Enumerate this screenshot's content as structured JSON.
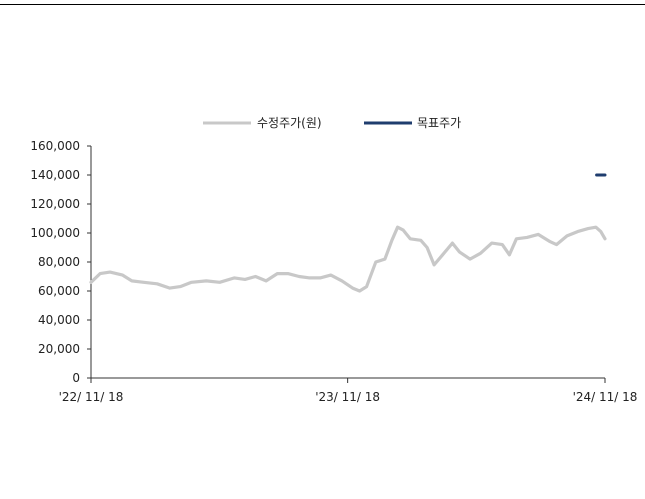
{
  "chart_data": {
    "type": "line",
    "series": [
      {
        "name": "수정주가(원)",
        "color": "#c8c8c8",
        "points": [
          [
            "2022-11-18",
            66000
          ],
          [
            "2022-12-01",
            72000
          ],
          [
            "2022-12-15",
            73000
          ],
          [
            "2023-01-02",
            71000
          ],
          [
            "2023-01-15",
            67000
          ],
          [
            "2023-02-01",
            66000
          ],
          [
            "2023-02-20",
            65000
          ],
          [
            "2023-03-10",
            62000
          ],
          [
            "2023-03-25",
            63000
          ],
          [
            "2023-04-10",
            66000
          ],
          [
            "2023-05-01",
            67000
          ],
          [
            "2023-05-20",
            66000
          ],
          [
            "2023-06-10",
            69000
          ],
          [
            "2023-06-25",
            68000
          ],
          [
            "2023-07-10",
            70000
          ],
          [
            "2023-07-25",
            67000
          ],
          [
            "2023-08-10",
            72000
          ],
          [
            "2023-08-25",
            72000
          ],
          [
            "2023-09-10",
            70000
          ],
          [
            "2023-09-25",
            69000
          ],
          [
            "2023-10-10",
            69000
          ],
          [
            "2023-10-25",
            71000
          ],
          [
            "2023-11-10",
            67000
          ],
          [
            "2023-11-25",
            62000
          ],
          [
            "2023-12-05",
            60000
          ],
          [
            "2023-12-15",
            63000
          ],
          [
            "2023-12-28",
            80000
          ],
          [
            "2024-01-10",
            82000
          ],
          [
            "2024-01-20",
            95000
          ],
          [
            "2024-01-28",
            104000
          ],
          [
            "2024-02-05",
            102000
          ],
          [
            "2024-02-15",
            96000
          ],
          [
            "2024-03-01",
            95000
          ],
          [
            "2024-03-10",
            90000
          ],
          [
            "2024-03-20",
            78000
          ],
          [
            "2024-04-01",
            85000
          ],
          [
            "2024-04-15",
            93000
          ],
          [
            "2024-04-25",
            87000
          ],
          [
            "2024-05-10",
            82000
          ],
          [
            "2024-05-25",
            86000
          ],
          [
            "2024-06-10",
            93000
          ],
          [
            "2024-06-25",
            92000
          ],
          [
            "2024-07-05",
            85000
          ],
          [
            "2024-07-15",
            96000
          ],
          [
            "2024-07-30",
            97000
          ],
          [
            "2024-08-15",
            99000
          ],
          [
            "2024-09-01",
            94000
          ],
          [
            "2024-09-10",
            92000
          ],
          [
            "2024-09-25",
            98000
          ],
          [
            "2024-10-10",
            101000
          ],
          [
            "2024-10-25",
            103000
          ],
          [
            "2024-11-05",
            104000
          ],
          [
            "2024-11-12",
            101000
          ],
          [
            "2024-11-18",
            96000
          ]
        ]
      },
      {
        "name": "목표주가",
        "color": "#1f3d6e",
        "points": [
          [
            "2024-11-06",
            140000
          ],
          [
            "2024-11-18",
            140000
          ]
        ]
      }
    ],
    "xlabel": "",
    "ylabel": "",
    "xlim": [
      "2022-11-18",
      "2024-11-18"
    ],
    "ylim": [
      0,
      160000
    ],
    "y_ticks": [
      0,
      20000,
      40000,
      60000,
      80000,
      100000,
      120000,
      140000,
      160000
    ],
    "y_tick_labels": [
      "0",
      "20,000",
      "40,000",
      "60,000",
      "80,000",
      "100,000",
      "120,000",
      "140,000",
      "160,000"
    ],
    "x_ticks": [
      "2022-11-18",
      "2023-11-18",
      "2024-11-18"
    ],
    "x_tick_labels": [
      "'22/ 11/ 18",
      "'23/ 11/ 18",
      "'24/ 11/ 18"
    ],
    "grid": false,
    "legend_position": "top-center"
  }
}
